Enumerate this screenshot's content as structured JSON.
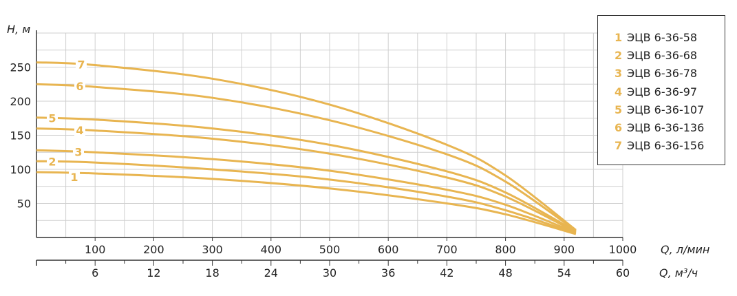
{
  "chart_data": {
    "type": "line",
    "y_axis_label": "H, м",
    "x_axis_label_primary": "Q, л/мин",
    "x_axis_label_secondary": "Q, м³/ч",
    "y_ticks": [
      50,
      100,
      150,
      200,
      250
    ],
    "x_ticks_primary": [
      100,
      200,
      300,
      400,
      500,
      600,
      700,
      800,
      900,
      1000
    ],
    "x_ticks_secondary": [
      6,
      12,
      18,
      24,
      30,
      36,
      42,
      48,
      54,
      60
    ],
    "xlim": [
      0,
      1000
    ],
    "ylim": [
      0,
      300
    ],
    "grid": true,
    "legend_position": "top-right",
    "line_color": "#e8b551",
    "series": [
      {
        "id": "1",
        "name": "ЭЦВ 6-36-58",
        "x": [
          0,
          100,
          300,
          500,
          700,
          800,
          920
        ],
        "y": [
          96,
          94,
          86,
          72,
          50,
          34,
          5
        ]
      },
      {
        "id": "2",
        "name": "ЭЦВ 6-36-68",
        "x": [
          0,
          100,
          300,
          500,
          700,
          800,
          920
        ],
        "y": [
          112,
          110,
          100,
          85,
          60,
          40,
          6
        ]
      },
      {
        "id": "3",
        "name": "ЭЦВ 6-36-78",
        "x": [
          0,
          100,
          300,
          500,
          700,
          800,
          920
        ],
        "y": [
          128,
          125,
          115,
          98,
          70,
          48,
          7
        ]
      },
      {
        "id": "4",
        "name": "ЭЦВ 6-36-97",
        "x": [
          0,
          100,
          300,
          500,
          700,
          800,
          920
        ],
        "y": [
          160,
          157,
          145,
          123,
          88,
          60,
          8
        ]
      },
      {
        "id": "5",
        "name": "ЭЦВ 6-36-107",
        "x": [
          0,
          100,
          300,
          500,
          700,
          800,
          920
        ],
        "y": [
          176,
          173,
          160,
          136,
          97,
          66,
          9
        ]
      },
      {
        "id": "6",
        "name": "ЭЦВ 6-36-136",
        "x": [
          0,
          100,
          300,
          500,
          700,
          800,
          920
        ],
        "y": [
          225,
          221,
          205,
          172,
          122,
          82,
          10
        ]
      },
      {
        "id": "7",
        "name": "ЭЦВ 6-36-156",
        "x": [
          0,
          100,
          300,
          500,
          700,
          800,
          920
        ],
        "y": [
          257,
          253,
          233,
          195,
          136,
          91,
          11
        ]
      }
    ]
  }
}
